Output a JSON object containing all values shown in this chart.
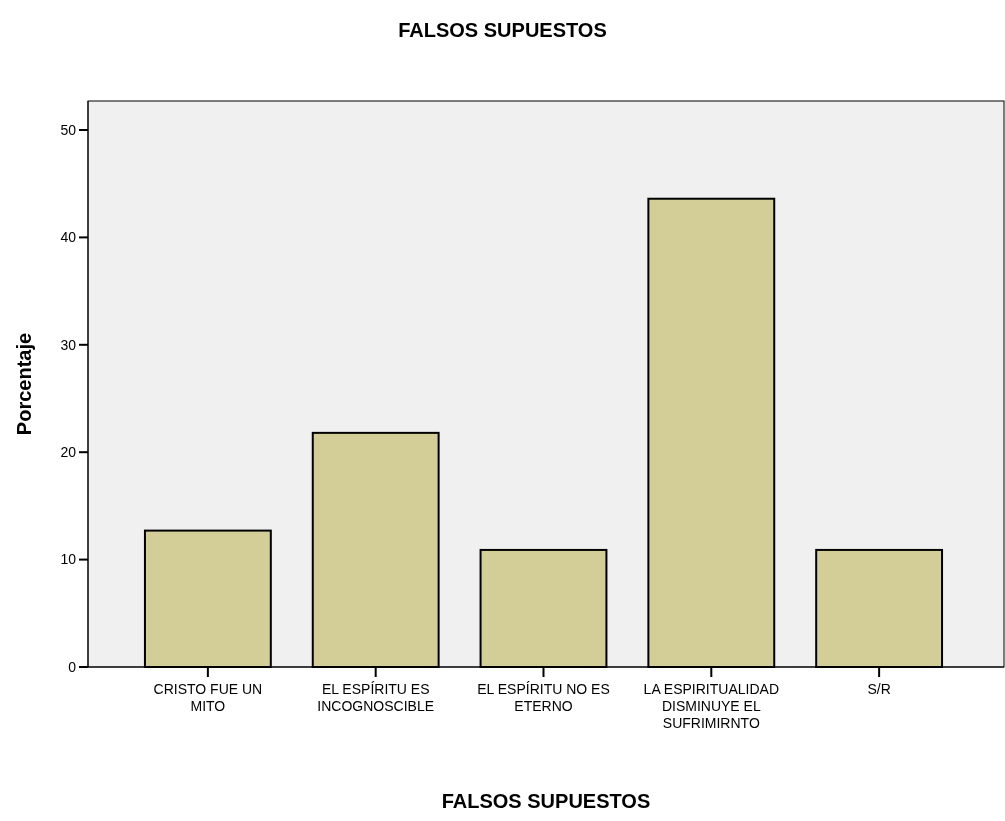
{
  "chart_data": {
    "type": "bar",
    "title": "FALSOS SUPUESTOS",
    "xlabel": "FALSOS SUPUESTOS",
    "ylabel": "Porcentaje",
    "categories": [
      "CRISTO FUE UN MITO",
      "EL ESPÍRITU ES INCOGNOSCIBLE",
      "EL ESPÍRITU NO ES ETERNO",
      "LA ESPIRITUALIDAD DISMINUYE EL SUFRIMIRNTO",
      "S/R"
    ],
    "values": [
      12.7,
      21.8,
      10.9,
      43.6,
      10.9
    ],
    "color": "#d3ce97",
    "ylim": [
      0,
      52.7
    ],
    "yticks": [
      0,
      10,
      20,
      30,
      40,
      50
    ],
    "grid": false
  }
}
